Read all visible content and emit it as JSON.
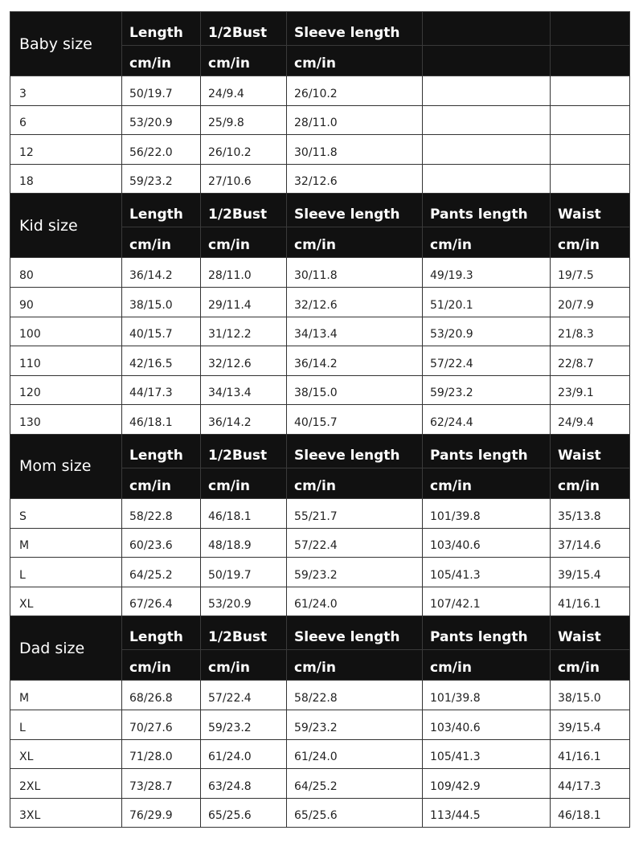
{
  "colors": {
    "header_bg": "#111111",
    "header_text": "#ffffff",
    "grid": "#333333"
  },
  "unit_label": "cm/in",
  "sections": [
    {
      "title": "Baby size",
      "columns": [
        "Length",
        "1/2Bust",
        "Sleeve length",
        "",
        ""
      ],
      "units": [
        "cm/in",
        "cm/in",
        "cm/in",
        "",
        ""
      ],
      "rows": [
        [
          "3",
          "50/19.7",
          "24/9.4",
          "26/10.2",
          "",
          ""
        ],
        [
          "6",
          "53/20.9",
          "25/9.8",
          "28/11.0",
          "",
          ""
        ],
        [
          "12",
          "56/22.0",
          "26/10.2",
          "30/11.8",
          "",
          ""
        ],
        [
          "18",
          "59/23.2",
          "27/10.6",
          "32/12.6",
          "",
          ""
        ]
      ]
    },
    {
      "title": "Kid size",
      "columns": [
        "Length",
        "1/2Bust",
        "Sleeve length",
        "Pants length",
        "Waist"
      ],
      "units": [
        "cm/in",
        "cm/in",
        "cm/in",
        "cm/in",
        "cm/in"
      ],
      "rows": [
        [
          "80",
          "36/14.2",
          "28/11.0",
          "30/11.8",
          "49/19.3",
          "19/7.5"
        ],
        [
          "90",
          "38/15.0",
          "29/11.4",
          "32/12.6",
          "51/20.1",
          "20/7.9"
        ],
        [
          "100",
          "40/15.7",
          "31/12.2",
          "34/13.4",
          "53/20.9",
          "21/8.3"
        ],
        [
          "110",
          "42/16.5",
          "32/12.6",
          "36/14.2",
          "57/22.4",
          "22/8.7"
        ],
        [
          "120",
          "44/17.3",
          "34/13.4",
          "38/15.0",
          "59/23.2",
          "23/9.1"
        ],
        [
          "130",
          "46/18.1",
          "36/14.2",
          "40/15.7",
          "62/24.4",
          "24/9.4"
        ]
      ]
    },
    {
      "title": "Mom size",
      "columns": [
        "Length",
        "1/2Bust",
        "Sleeve length",
        "Pants length",
        "Waist"
      ],
      "units": [
        "cm/in",
        "cm/in",
        "cm/in",
        "cm/in",
        "cm/in"
      ],
      "rows": [
        [
          "S",
          "58/22.8",
          "46/18.1",
          "55/21.7",
          "101/39.8",
          "35/13.8"
        ],
        [
          "M",
          "60/23.6",
          "48/18.9",
          "57/22.4",
          "103/40.6",
          "37/14.6"
        ],
        [
          "L",
          "64/25.2",
          "50/19.7",
          "59/23.2",
          "105/41.3",
          "39/15.4"
        ],
        [
          "XL",
          "67/26.4",
          "53/20.9",
          "61/24.0",
          "107/42.1",
          "41/16.1"
        ]
      ]
    },
    {
      "title": "Dad size",
      "columns": [
        "Length",
        "1/2Bust",
        "Sleeve length",
        "Pants length",
        "Waist"
      ],
      "units": [
        "cm/in",
        "cm/in",
        "cm/in",
        "cm/in",
        "cm/in"
      ],
      "rows": [
        [
          "M",
          "68/26.8",
          "57/22.4",
          "58/22.8",
          "101/39.8",
          "38/15.0"
        ],
        [
          "L",
          "70/27.6",
          "59/23.2",
          "59/23.2",
          "103/40.6",
          "39/15.4"
        ],
        [
          "XL",
          "71/28.0",
          "61/24.0",
          "61/24.0",
          "105/41.3",
          "41/16.1"
        ],
        [
          "2XL",
          "73/28.7",
          "63/24.8",
          "64/25.2",
          "109/42.9",
          "44/17.3"
        ],
        [
          "3XL",
          "76/29.9",
          "65/25.6",
          "65/25.6",
          "113/44.5",
          "46/18.1"
        ]
      ]
    }
  ]
}
